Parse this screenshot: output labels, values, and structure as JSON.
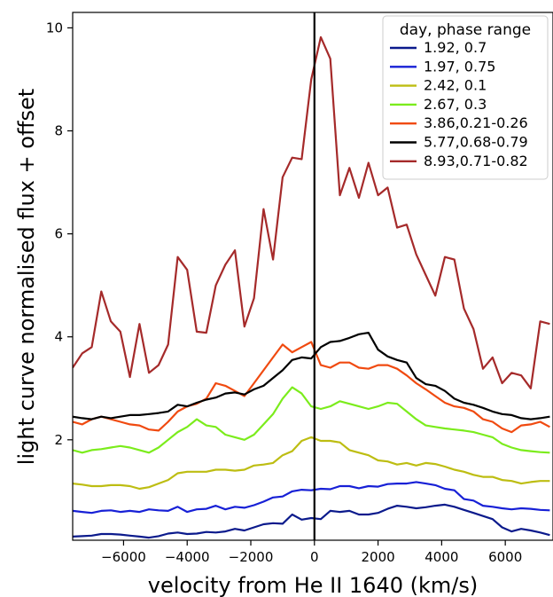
{
  "chart_data": {
    "type": "line",
    "title": "",
    "xlabel": "velocity from He II 1640 (km/s)",
    "ylabel": "light curve normalised flux + offset",
    "xlim": [
      -7600,
      7500
    ],
    "ylim": [
      0.05,
      10.3
    ],
    "xticks": [
      -6000,
      -4000,
      -2000,
      0,
      2000,
      4000,
      6000
    ],
    "xtick_labels": [
      "−6000",
      "−4000",
      "−2000",
      "0",
      "2000",
      "4000",
      "6000"
    ],
    "yticks": [
      2,
      4,
      6,
      8,
      10
    ],
    "ytick_labels": [
      "2",
      "4",
      "6",
      "8",
      "10"
    ],
    "vline_x": 0,
    "legend": {
      "title": "day, phase range",
      "position": "top-right"
    },
    "x": [
      -7600,
      -7300,
      -7000,
      -6700,
      -6400,
      -6100,
      -5800,
      -5500,
      -5200,
      -4900,
      -4600,
      -4300,
      -4000,
      -3700,
      -3400,
      -3100,
      -2800,
      -2500,
      -2200,
      -1900,
      -1600,
      -1300,
      -1000,
      -700,
      -400,
      -100,
      200,
      500,
      800,
      1100,
      1400,
      1700,
      2000,
      2300,
      2600,
      2900,
      3200,
      3500,
      3800,
      4100,
      4400,
      4700,
      5000,
      5300,
      5600,
      5900,
      6200,
      6500,
      6800,
      7100,
      7400
    ],
    "series": [
      {
        "name": "1.92, 0.7",
        "color": "#0b1a8c",
        "values": [
          0.12,
          0.13,
          0.14,
          0.17,
          0.17,
          0.16,
          0.14,
          0.12,
          0.1,
          0.13,
          0.18,
          0.2,
          0.17,
          0.18,
          0.21,
          0.2,
          0.22,
          0.27,
          0.24,
          0.3,
          0.36,
          0.38,
          0.37,
          0.55,
          0.45,
          0.48,
          0.46,
          0.62,
          0.6,
          0.62,
          0.55,
          0.55,
          0.58,
          0.66,
          0.72,
          0.7,
          0.67,
          0.69,
          0.72,
          0.74,
          0.7,
          0.64,
          0.58,
          0.52,
          0.46,
          0.3,
          0.22,
          0.27,
          0.24,
          0.2,
          0.15
        ]
      },
      {
        "name": "1.97, 0.75",
        "color": "#1720d6",
        "values": [
          0.62,
          0.6,
          0.58,
          0.62,
          0.63,
          0.6,
          0.62,
          0.6,
          0.65,
          0.63,
          0.62,
          0.7,
          0.6,
          0.65,
          0.66,
          0.72,
          0.65,
          0.7,
          0.68,
          0.73,
          0.8,
          0.88,
          0.9,
          1.0,
          1.03,
          1.02,
          1.05,
          1.04,
          1.1,
          1.1,
          1.06,
          1.1,
          1.09,
          1.14,
          1.15,
          1.15,
          1.18,
          1.15,
          1.12,
          1.05,
          1.02,
          0.85,
          0.82,
          0.72,
          0.7,
          0.67,
          0.65,
          0.67,
          0.66,
          0.64,
          0.63
        ]
      },
      {
        "name": "2.42, 0.1",
        "color": "#bdbd12",
        "values": [
          1.15,
          1.13,
          1.1,
          1.1,
          1.12,
          1.12,
          1.1,
          1.05,
          1.08,
          1.15,
          1.22,
          1.35,
          1.38,
          1.38,
          1.38,
          1.42,
          1.42,
          1.4,
          1.42,
          1.5,
          1.52,
          1.55,
          1.7,
          1.78,
          1.98,
          2.05,
          1.98,
          1.98,
          1.95,
          1.8,
          1.75,
          1.7,
          1.6,
          1.58,
          1.52,
          1.55,
          1.5,
          1.55,
          1.53,
          1.48,
          1.42,
          1.38,
          1.32,
          1.28,
          1.28,
          1.22,
          1.2,
          1.15,
          1.18,
          1.2,
          1.2
        ]
      },
      {
        "name": "2.67, 0.3",
        "color": "#7bec1c",
        "values": [
          1.8,
          1.75,
          1.8,
          1.82,
          1.85,
          1.88,
          1.85,
          1.8,
          1.75,
          1.85,
          2.0,
          2.15,
          2.25,
          2.4,
          2.28,
          2.25,
          2.1,
          2.05,
          2.0,
          2.1,
          2.3,
          2.5,
          2.8,
          3.02,
          2.9,
          2.65,
          2.6,
          2.65,
          2.75,
          2.7,
          2.65,
          2.6,
          2.65,
          2.72,
          2.7,
          2.55,
          2.4,
          2.28,
          2.25,
          2.22,
          2.2,
          2.18,
          2.15,
          2.1,
          2.05,
          1.92,
          1.85,
          1.8,
          1.78,
          1.76,
          1.75
        ]
      },
      {
        "name": "3.86,0.21-0.26",
        "color": "#f04a10",
        "values": [
          2.35,
          2.3,
          2.4,
          2.45,
          2.4,
          2.35,
          2.3,
          2.28,
          2.2,
          2.18,
          2.35,
          2.55,
          2.65,
          2.7,
          2.8,
          3.1,
          3.05,
          2.95,
          2.85,
          3.1,
          3.35,
          3.6,
          3.85,
          3.7,
          3.8,
          3.9,
          3.45,
          3.4,
          3.5,
          3.5,
          3.4,
          3.38,
          3.45,
          3.45,
          3.38,
          3.25,
          3.1,
          2.98,
          2.85,
          2.72,
          2.65,
          2.62,
          2.55,
          2.4,
          2.35,
          2.22,
          2.15,
          2.28,
          2.3,
          2.35,
          2.25
        ]
      },
      {
        "name": "5.77,0.68-0.79",
        "color": "#000000",
        "values": [
          2.45,
          2.42,
          2.4,
          2.45,
          2.42,
          2.45,
          2.48,
          2.48,
          2.5,
          2.52,
          2.55,
          2.68,
          2.65,
          2.72,
          2.78,
          2.82,
          2.9,
          2.92,
          2.88,
          2.98,
          3.05,
          3.2,
          3.35,
          3.55,
          3.6,
          3.58,
          3.8,
          3.9,
          3.92,
          3.98,
          4.05,
          4.08,
          3.75,
          3.62,
          3.55,
          3.5,
          3.2,
          3.08,
          3.05,
          2.95,
          2.8,
          2.72,
          2.68,
          2.62,
          2.55,
          2.5,
          2.48,
          2.42,
          2.4,
          2.42,
          2.45
        ]
      },
      {
        "name": "8.93,0.71-0.82",
        "color": "#a52a2a",
        "values": [
          3.4,
          3.68,
          3.8,
          4.88,
          4.3,
          4.1,
          3.22,
          4.25,
          3.3,
          3.45,
          3.85,
          5.55,
          5.3,
          4.1,
          4.08,
          5.0,
          5.4,
          5.68,
          4.2,
          4.75,
          6.48,
          5.5,
          7.1,
          7.48,
          7.45,
          9.0,
          9.82,
          9.4,
          6.75,
          7.28,
          6.7,
          7.38,
          6.75,
          6.9,
          6.12,
          6.18,
          5.6,
          5.2,
          4.8,
          5.55,
          5.5,
          4.55,
          4.15,
          3.38,
          3.6,
          3.1,
          3.3,
          3.25,
          3.0,
          4.3,
          4.25
        ]
      }
    ]
  }
}
